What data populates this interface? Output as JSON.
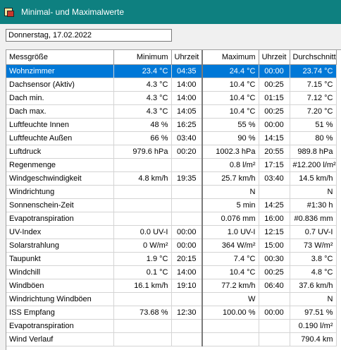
{
  "window": {
    "title": "Minimal- und Maximalwerte",
    "icon": "app-chart-icon"
  },
  "date": "Donnerstag, 17.02.2022",
  "table": {
    "headers": [
      "Messgröße",
      "Minimum",
      "Uhrzeit",
      "Maximum",
      "Uhrzeit",
      "Durchschnitt"
    ],
    "selected_row": 0,
    "rows": [
      [
        "Wohnzimmer",
        "23.4 °C",
        "04:35",
        "24.4 °C",
        "00:00",
        "23.74 °C"
      ],
      [
        "Dachsensor (Aktiv)",
        "4.3 °C",
        "14:00",
        "10.4 °C",
        "00:25",
        "7.15 °C"
      ],
      [
        "Dach min.",
        "4.3 °C",
        "14:00",
        "10.4 °C",
        "01:15",
        "7.12 °C"
      ],
      [
        "Dach max.",
        "4.3 °C",
        "14:05",
        "10.4 °C",
        "00:25",
        "7.20 °C"
      ],
      [
        "Luftfeuchte Innen",
        "48 %",
        "16:25",
        "55 %",
        "00:00",
        "51 %"
      ],
      [
        "Luftfeuchte Außen",
        "66 %",
        "03:40",
        "90 %",
        "14:15",
        "80 %"
      ],
      [
        "Luftdruck",
        "979.6 hPa",
        "00:20",
        "1002.3 hPa",
        "20:55",
        "989.8 hPa"
      ],
      [
        "Regenmenge",
        "",
        "",
        "0.8 l/m²",
        "17:15",
        "#12.200 l/m²"
      ],
      [
        "Windgeschwindigkeit",
        "4.8 km/h",
        "19:35",
        "25.7 km/h",
        "03:40",
        "14.5 km/h"
      ],
      [
        "Windrichtung",
        "",
        "",
        "N",
        "",
        "N"
      ],
      [
        "Sonnenschein-Zeit",
        "",
        "",
        "5 min",
        "14:25",
        "#1:30 h"
      ],
      [
        "Evapotranspiration",
        "",
        "",
        "0.076 mm",
        "16:00",
        "#0.836 mm"
      ],
      [
        "UV-Index",
        "0.0 UV-I",
        "00:00",
        "1.0 UV-I",
        "12:15",
        "0.7 UV-I"
      ],
      [
        "Solarstrahlung",
        "0 W/m²",
        "00:00",
        "364 W/m²",
        "15:00",
        "73 W/m²"
      ],
      [
        "Taupunkt",
        "1.9 °C",
        "20:15",
        "7.4 °C",
        "00:30",
        "3.8 °C"
      ],
      [
        "Windchill",
        "0.1 °C",
        "14:00",
        "10.4 °C",
        "00:25",
        "4.8 °C"
      ],
      [
        "Windböen",
        "16.1 km/h",
        "19:10",
        "77.2 km/h",
        "06:40",
        "37.6 km/h"
      ],
      [
        "Windrichtung Windböen",
        "",
        "",
        "W",
        "",
        "N"
      ],
      [
        "ISS Empfang",
        "73.68 %",
        "12:30",
        "100.00 %",
        "00:00",
        "97.51 %"
      ],
      [
        "Evapotranspiration",
        "",
        "",
        "",
        "",
        "0.190 l/m²"
      ],
      [
        "Wind Verlauf",
        "",
        "",
        "",
        "",
        "790.4 km"
      ]
    ]
  }
}
